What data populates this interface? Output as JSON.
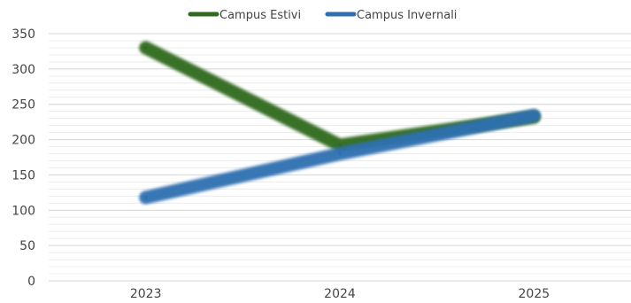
{
  "chart_data": {
    "type": "line",
    "title": "",
    "xlabel": "",
    "ylabel": "",
    "categories": [
      "2023",
      "2024",
      "2025"
    ],
    "ylim": [
      0,
      350
    ],
    "yticks": [
      0,
      50,
      100,
      150,
      200,
      250,
      300,
      350
    ],
    "grid": true,
    "legend_position": "top-center",
    "series": [
      {
        "name": "Campus Estivi",
        "values": [
          330,
          192,
          232
        ],
        "color": "#2e6b1f"
      },
      {
        "name": "Campus Invernali",
        "values": [
          118,
          180,
          234
        ],
        "color": "#2f6fb0"
      }
    ]
  }
}
